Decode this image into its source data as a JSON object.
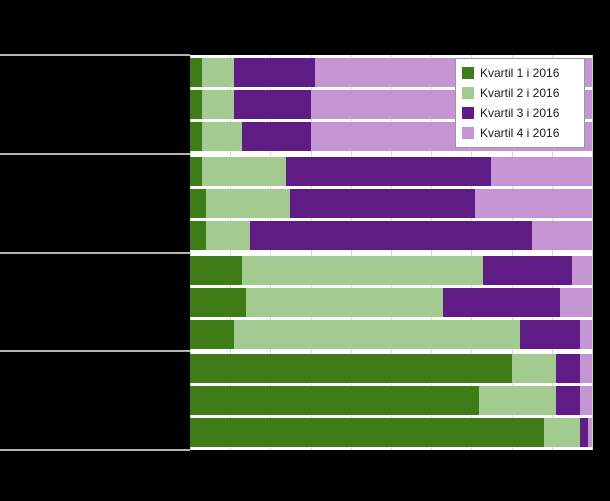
{
  "canvas": {
    "background": "#000000",
    "plot_background": "#ffffff",
    "separator_color": "#b3b3b3"
  },
  "chart_data": {
    "type": "bar",
    "stacked": true,
    "orientation": "horizontal",
    "value_unit": "percent",
    "xlim": [
      0,
      100
    ],
    "gridline_interval": 10,
    "grid_color": "#d6d6d6",
    "grid": true,
    "legend_position": "top-right",
    "legend": [
      {
        "label": "Kvartil 1 i 2016",
        "color": "#3d7c17"
      },
      {
        "label": "Kvartil 2 i 2016",
        "color": "#a4cb8f"
      },
      {
        "label": "Kvartil 3 i 2016",
        "color": "#5e1c84"
      },
      {
        "label": "Kvartil 4 i 2016",
        "color": "#c495d2"
      }
    ],
    "series_order": [
      "Kvartil 1 i 2016",
      "Kvartil 2 i 2016",
      "Kvartil 3 i 2016",
      "Kvartil 4 i 2016"
    ],
    "groups": [
      {
        "bars": [
          [
            3,
            8,
            20,
            69
          ],
          [
            3,
            8,
            19,
            70
          ],
          [
            3,
            10,
            17,
            70
          ]
        ]
      },
      {
        "bars": [
          [
            3,
            21,
            51,
            25
          ],
          [
            4,
            21,
            46,
            29
          ],
          [
            4,
            11,
            70,
            15
          ]
        ]
      },
      {
        "bars": [
          [
            13,
            60,
            22,
            5
          ],
          [
            14,
            49,
            29,
            8
          ],
          [
            11,
            71,
            15,
            3
          ]
        ]
      },
      {
        "bars": [
          [
            80,
            11,
            6,
            3
          ],
          [
            72,
            19,
            6,
            3
          ],
          [
            88,
            9,
            2,
            1
          ]
        ]
      }
    ]
  }
}
